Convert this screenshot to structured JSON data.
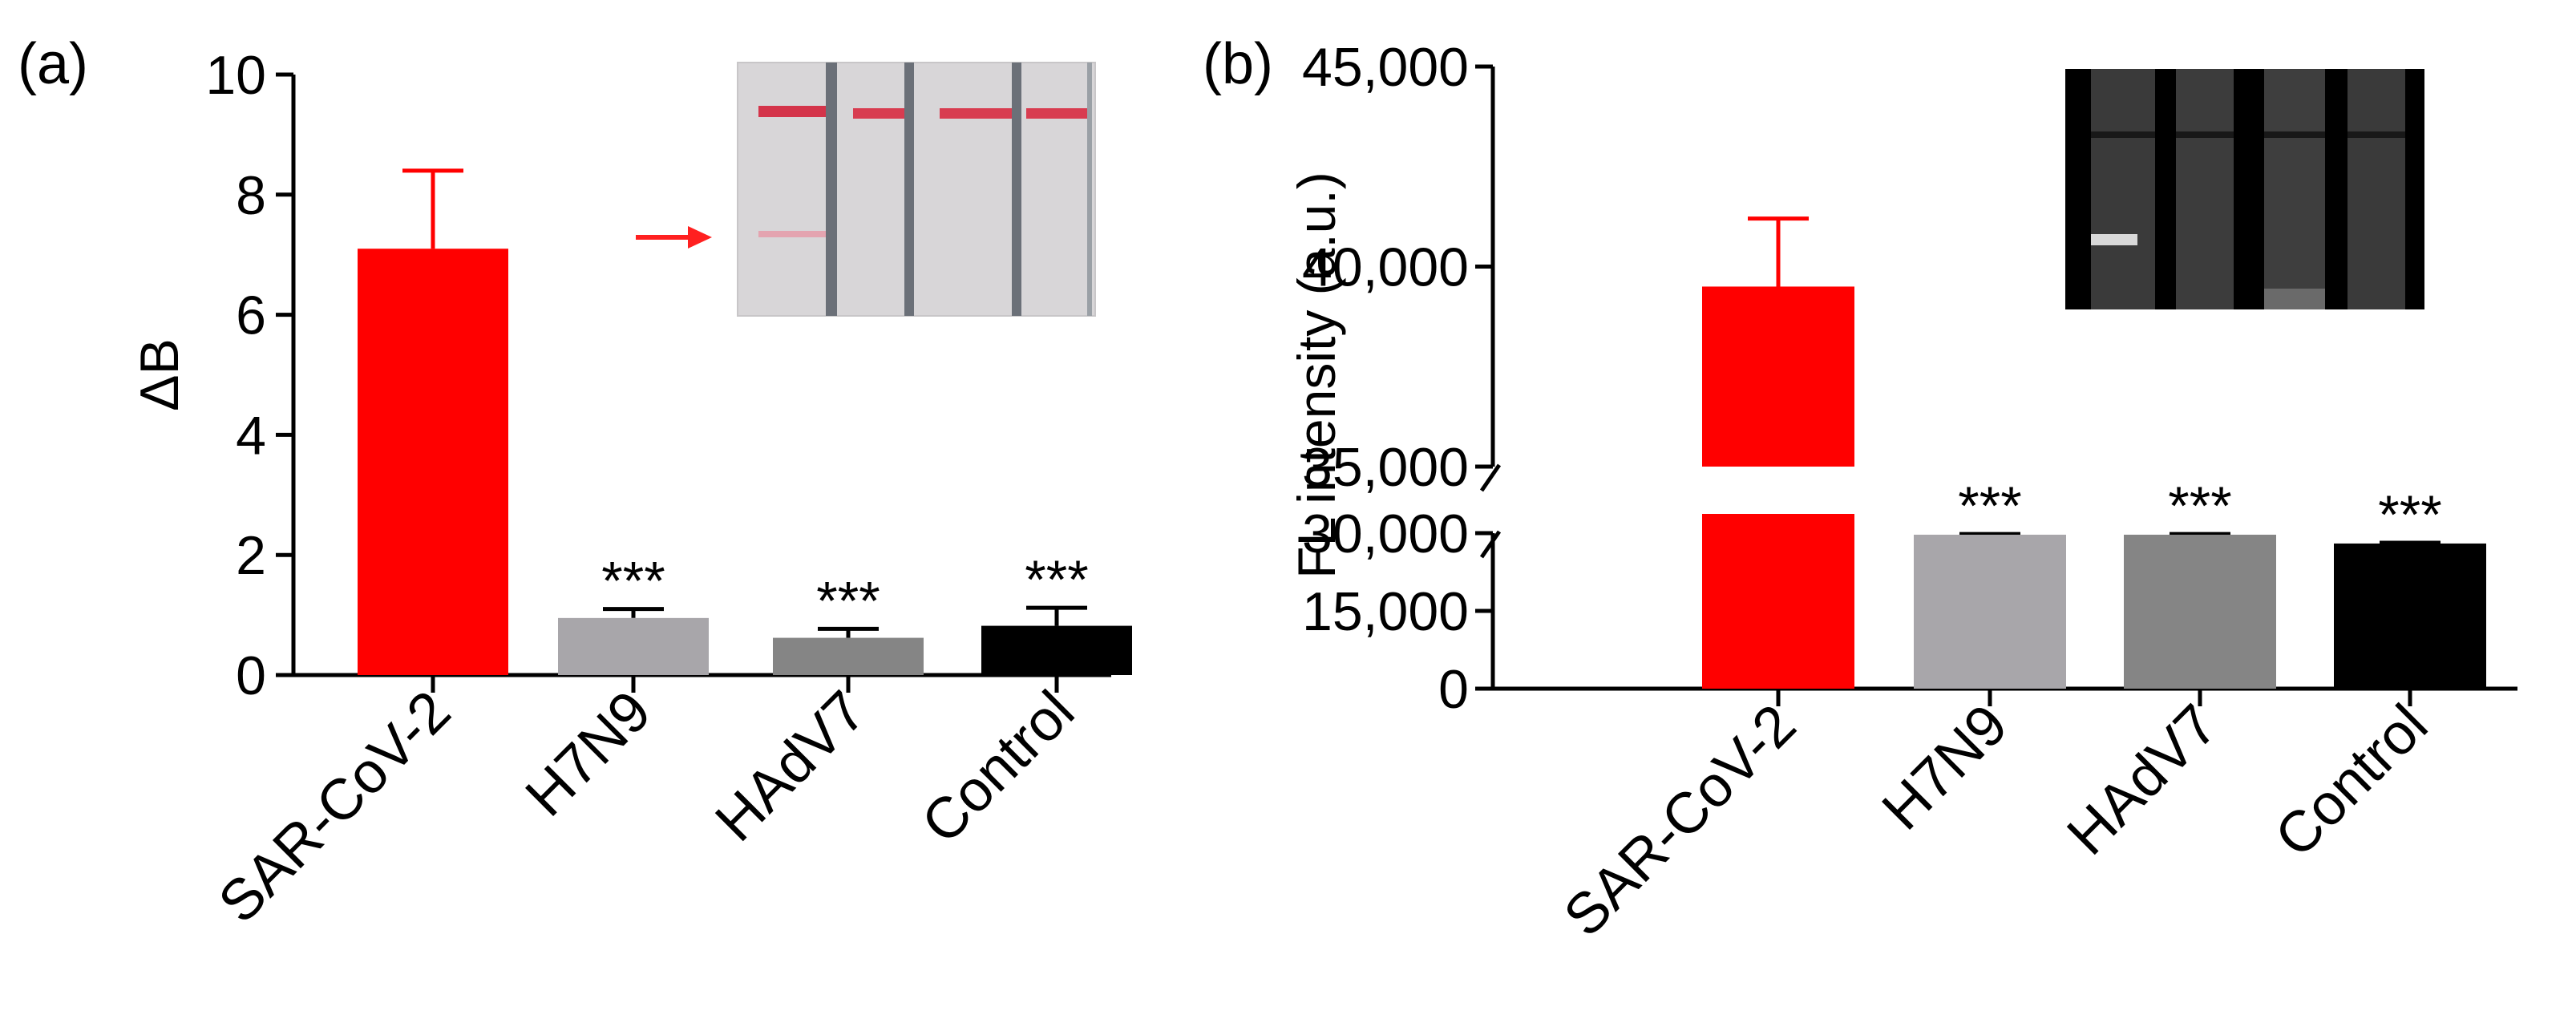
{
  "chart_data": [
    {
      "panel": "(a)",
      "type": "bar",
      "categories": [
        "SAR-CoV-2",
        "H7N9",
        "HAdV7",
        "Control"
      ],
      "values": [
        7.1,
        0.95,
        0.62,
        0.82
      ],
      "errors": [
        1.3,
        0.15,
        0.15,
        0.3
      ],
      "colors": [
        "#ff0000",
        "#a8a6aa",
        "#858585",
        "#000000"
      ],
      "significance": [
        "",
        "***",
        "***",
        "***"
      ],
      "ylabel": "ΔB",
      "ylim": [
        0,
        10
      ],
      "yticks": [
        0,
        2,
        4,
        6,
        8,
        10
      ],
      "ytick_labels": [
        "0",
        "2",
        "4",
        "6",
        "8",
        "10"
      ],
      "inset": "lateral flow test strip photo (red lines), arrow pointing to test line of SAR-CoV-2 strip",
      "arrow_color": "#ff2020"
    },
    {
      "panel": "(b)",
      "type": "bar",
      "categories": [
        "SAR-CoV-2",
        "H7N9",
        "HAdV7",
        "Control"
      ],
      "values": [
        39500,
        29700,
        29700,
        28000
      ],
      "errors": [
        1700,
        120,
        120,
        150
      ],
      "colors": [
        "#ff0000",
        "#a8a6aa",
        "#858585",
        "#000000"
      ],
      "significance": [
        "",
        "***",
        "***",
        "***"
      ],
      "ylabel": "FL intensity (a.u.)",
      "broken_axis": {
        "lower_range": [
          0,
          30000
        ],
        "upper_range": [
          35000,
          45000
        ]
      },
      "yticks": [
        0,
        15000,
        30000,
        35000,
        40000,
        45000
      ],
      "ytick_labels": [
        "0",
        "15,000",
        "30,000",
        "35,000",
        "40,000",
        "45,000"
      ],
      "inset": "fluorescence test strip photo (grayscale)"
    }
  ],
  "text": {
    "panel_a_label": "(a)",
    "panel_b_label": "(b)"
  }
}
